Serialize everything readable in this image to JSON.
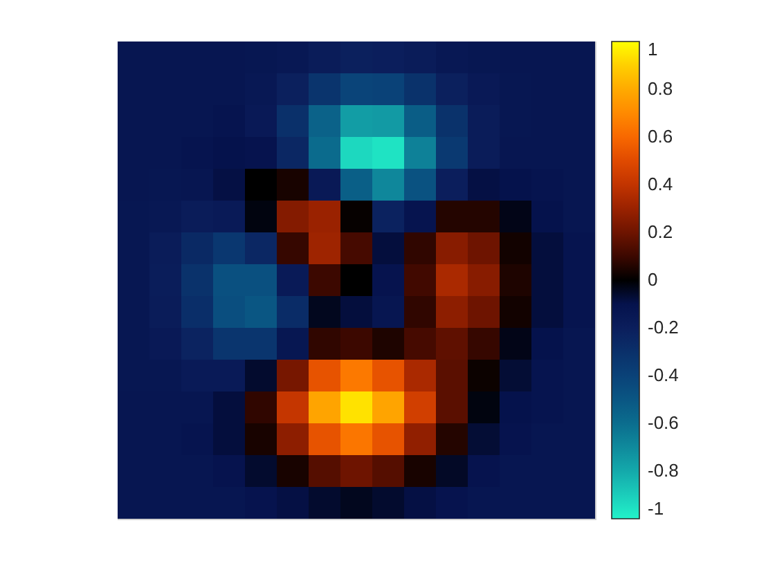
{
  "chart_data": {
    "type": "heatmap",
    "categories": [
      null,
      null,
      null,
      null,
      null,
      null,
      null,
      null,
      null,
      null,
      null,
      null,
      null,
      null,
      null
    ],
    "y_categories": [
      null,
      null,
      null,
      null,
      null,
      null,
      null,
      null,
      null,
      null,
      null,
      null,
      null,
      null,
      null
    ],
    "cells": [
      [
        -0.13,
        -0.13,
        -0.13,
        -0.13,
        -0.14,
        -0.15,
        -0.18,
        -0.21,
        -0.2,
        -0.18,
        -0.15,
        -0.14,
        -0.13,
        -0.13,
        -0.13
      ],
      [
        -0.13,
        -0.13,
        -0.13,
        -0.13,
        -0.15,
        -0.21,
        -0.32,
        -0.41,
        -0.4,
        -0.31,
        -0.21,
        -0.16,
        -0.14,
        -0.13,
        -0.13
      ],
      [
        -0.13,
        -0.13,
        -0.13,
        -0.12,
        -0.16,
        -0.3,
        -0.55,
        -0.76,
        -0.75,
        -0.53,
        -0.31,
        -0.18,
        -0.14,
        -0.13,
        -0.13
      ],
      [
        -0.13,
        -0.13,
        -0.12,
        -0.1,
        -0.11,
        -0.25,
        -0.59,
        -0.93,
        -0.96,
        -0.67,
        -0.35,
        -0.18,
        -0.13,
        -0.13,
        -0.13
      ],
      [
        -0.13,
        -0.14,
        -0.13,
        -0.09,
        0,
        0.04,
        -0.16,
        -0.54,
        -0.69,
        -0.48,
        -0.2,
        -0.09,
        -0.1,
        -0.12,
        -0.13
      ],
      [
        -0.14,
        -0.15,
        -0.18,
        -0.17,
        -0.02,
        0.25,
        0.3,
        0.01,
        -0.22,
        -0.12,
        0.06,
        0.06,
        -0.03,
        -0.1,
        -0.13
      ],
      [
        -0.14,
        -0.18,
        -0.26,
        -0.34,
        -0.25,
        0.09,
        0.31,
        0.12,
        -0.08,
        0.08,
        0.26,
        0.2,
        0.03,
        -0.08,
        -0.12
      ],
      [
        -0.14,
        -0.19,
        -0.31,
        -0.47,
        -0.47,
        -0.17,
        0.1,
        0,
        -0.11,
        0.11,
        0.34,
        0.26,
        0.05,
        -0.08,
        -0.12
      ],
      [
        -0.14,
        -0.18,
        -0.29,
        -0.46,
        -0.5,
        -0.28,
        -0.04,
        -0.08,
        -0.13,
        0.08,
        0.27,
        0.2,
        0.03,
        -0.08,
        -0.12
      ],
      [
        -0.14,
        -0.16,
        -0.23,
        -0.33,
        -0.33,
        -0.14,
        0.08,
        0.1,
        0.05,
        0.12,
        0.17,
        0.09,
        -0.03,
        -0.1,
        -0.13
      ],
      [
        -0.14,
        -0.14,
        -0.17,
        -0.17,
        -0.06,
        0.22,
        0.53,
        0.65,
        0.53,
        0.34,
        0.16,
        0.02,
        -0.07,
        -0.12,
        -0.13
      ],
      [
        -0.13,
        -0.13,
        -0.13,
        -0.08,
        0.08,
        0.41,
        0.78,
        0.94,
        0.78,
        0.45,
        0.16,
        -0.02,
        -0.1,
        -0.12,
        -0.13
      ],
      [
        -0.13,
        -0.13,
        -0.12,
        -0.08,
        0.04,
        0.27,
        0.53,
        0.64,
        0.53,
        0.28,
        0.06,
        -0.07,
        -0.11,
        -0.13,
        -0.13
      ],
      [
        -0.13,
        -0.13,
        -0.13,
        -0.11,
        -0.06,
        0.04,
        0.15,
        0.2,
        0.15,
        0.04,
        -0.05,
        -0.11,
        -0.13,
        -0.13,
        -0.13
      ],
      [
        -0.13,
        -0.13,
        -0.13,
        -0.13,
        -0.11,
        -0.09,
        -0.06,
        -0.04,
        -0.06,
        -0.09,
        -0.11,
        -0.13,
        -0.13,
        -0.13,
        -0.13
      ]
    ],
    "clim": [
      -1,
      1
    ],
    "cticks": [
      -1,
      -0.8,
      -0.6,
      -0.4,
      -0.2,
      0,
      0.2,
      0.4,
      0.6,
      0.8,
      1
    ],
    "tick_labels": false
  }
}
